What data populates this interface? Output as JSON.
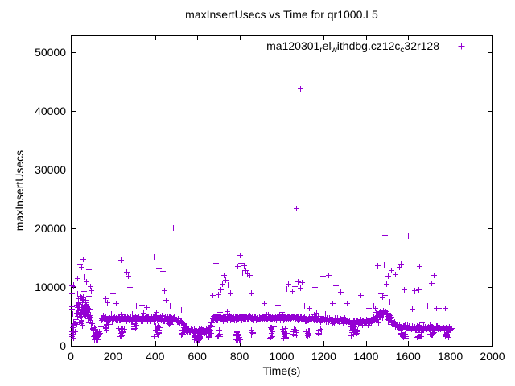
{
  "window": {
    "title": "maxInsertUsecs vs Time for qr1000.L5"
  },
  "chart_data": {
    "type": "scatter",
    "title": "maxInsertUsecs vs Time for qr1000.L5",
    "xlabel": "Time(s)",
    "ylabel": "maxInsertUsecs",
    "xlim": [
      0,
      2000
    ],
    "ylim": [
      0,
      52900
    ],
    "xticks": [
      0,
      200,
      400,
      600,
      800,
      1000,
      1200,
      1400,
      1600,
      1800,
      2000
    ],
    "yticks": [
      0,
      10000,
      20000,
      30000,
      40000,
      50000
    ],
    "grid": false,
    "legend_position": "top-right-inside",
    "marker": "plus",
    "marker_color": "#9400d3",
    "axis_color": "#000000",
    "series_name": "ma120301_rel_withdbg.cz12c_c32r128",
    "legend_display_segments": [
      {
        "t": "ma120301"
      },
      {
        "t": "r",
        "sub": true
      },
      {
        "t": "el"
      },
      {
        "t": "w",
        "sub": true
      },
      {
        "t": "ithdbg.cz12c"
      },
      {
        "t": "c",
        "sub": true
      },
      {
        "t": "32r128"
      }
    ],
    "seed": 42,
    "sample_x0": 2,
    "sample_x1": 1804,
    "sample_step": 2,
    "band_profile": [
      [
        0,
        2200,
        1600
      ],
      [
        20,
        4200,
        2200
      ],
      [
        40,
        6200,
        2400
      ],
      [
        60,
        7300,
        2300
      ],
      [
        78,
        6300,
        2200
      ],
      [
        95,
        3900,
        1500
      ],
      [
        108,
        2400,
        900
      ],
      [
        135,
        2100,
        800
      ],
      [
        148,
        4500,
        700
      ],
      [
        165,
        4600,
        650
      ],
      [
        460,
        4650,
        600
      ],
      [
        510,
        4400,
        650
      ],
      [
        540,
        3000,
        600
      ],
      [
        560,
        2700,
        550
      ],
      [
        605,
        2450,
        550
      ],
      [
        650,
        2700,
        550
      ],
      [
        663,
        3500,
        800
      ],
      [
        672,
        4800,
        600
      ],
      [
        1040,
        4800,
        550
      ],
      [
        1135,
        4650,
        550
      ],
      [
        1300,
        4300,
        650
      ],
      [
        1330,
        3900,
        750
      ],
      [
        1420,
        4200,
        800
      ],
      [
        1455,
        4900,
        1100
      ],
      [
        1475,
        5700,
        1600
      ],
      [
        1502,
        5600,
        1700
      ],
      [
        1522,
        4000,
        1100
      ],
      [
        1545,
        3300,
        500
      ],
      [
        1650,
        3100,
        480
      ],
      [
        1745,
        3000,
        450
      ],
      [
        1805,
        2850,
        450
      ]
    ],
    "dip_columns": [
      [
        7,
        6,
        600,
        10400,
        15
      ],
      [
        55,
        30,
        3000,
        9500,
        40
      ],
      [
        120,
        15,
        1000,
        2600,
        12
      ],
      [
        172,
        10,
        2700,
        3700,
        10
      ],
      [
        240,
        14,
        1500,
        3200,
        16
      ],
      [
        302,
        8,
        2900,
        3900,
        8
      ],
      [
        410,
        16,
        1500,
        3500,
        14
      ],
      [
        470,
        10,
        3500,
        4500,
        6
      ],
      [
        532,
        10,
        1800,
        2800,
        8
      ],
      [
        600,
        18,
        900,
        2000,
        14
      ],
      [
        655,
        8,
        1500,
        2500,
        6
      ],
      [
        700,
        6,
        1300,
        2700,
        8
      ],
      [
        790,
        12,
        700,
        2600,
        14
      ],
      [
        860,
        7,
        1800,
        2900,
        7
      ],
      [
        952,
        12,
        1400,
        3300,
        12
      ],
      [
        1015,
        12,
        1300,
        3000,
        12
      ],
      [
        1060,
        8,
        1700,
        3000,
        8
      ],
      [
        1122,
        8,
        1500,
        2600,
        8
      ],
      [
        1180,
        7,
        2000,
        3000,
        6
      ],
      [
        1345,
        22,
        1800,
        2900,
        14
      ],
      [
        1578,
        15,
        1300,
        2300,
        12
      ],
      [
        1652,
        10,
        1500,
        2300,
        8
      ],
      [
        1712,
        10,
        1600,
        2400,
        8
      ],
      [
        1782,
        12,
        1400,
        2500,
        10
      ]
    ],
    "points_outliers": [
      [
        1086,
        43900
      ],
      [
        1069,
        23500
      ],
      [
        485,
        20100
      ],
      [
        1489,
        18900
      ],
      [
        1599,
        18800
      ],
      [
        1489,
        17400
      ],
      [
        57,
        14800
      ],
      [
        42,
        14000
      ],
      [
        50,
        13400
      ],
      [
        84,
        13000
      ],
      [
        30,
        11500
      ],
      [
        65,
        11800
      ],
      [
        72,
        10900
      ],
      [
        90,
        10200
      ],
      [
        96,
        9500
      ],
      [
        237,
        14700
      ],
      [
        262,
        12600
      ],
      [
        270,
        11900
      ],
      [
        277,
        10000
      ],
      [
        165,
        8100
      ],
      [
        172,
        7400
      ],
      [
        197,
        9000
      ],
      [
        212,
        7200
      ],
      [
        310,
        6800
      ],
      [
        335,
        7000
      ],
      [
        360,
        6600
      ],
      [
        393,
        15200
      ],
      [
        416,
        13300
      ],
      [
        434,
        12700
      ],
      [
        442,
        9500
      ],
      [
        452,
        7800
      ],
      [
        470,
        6800
      ],
      [
        522,
        6200
      ],
      [
        670,
        8700
      ],
      [
        687,
        14100
      ],
      [
        700,
        8800
      ],
      [
        710,
        9600
      ],
      [
        718,
        10500
      ],
      [
        725,
        12000
      ],
      [
        733,
        11200
      ],
      [
        745,
        10400
      ],
      [
        756,
        9100
      ],
      [
        790,
        13500
      ],
      [
        800,
        15500
      ],
      [
        806,
        14100
      ],
      [
        812,
        12500
      ],
      [
        820,
        13700
      ],
      [
        828,
        12900
      ],
      [
        836,
        12300
      ],
      [
        848,
        12100
      ],
      [
        855,
        9000
      ],
      [
        905,
        6900
      ],
      [
        915,
        7300
      ],
      [
        980,
        7000
      ],
      [
        1022,
        9700
      ],
      [
        1032,
        10500
      ],
      [
        1050,
        9300
      ],
      [
        1062,
        10200
      ],
      [
        1075,
        11000
      ],
      [
        1088,
        9800
      ],
      [
        1097,
        10800
      ],
      [
        1105,
        6900
      ],
      [
        1130,
        6500
      ],
      [
        1155,
        10000
      ],
      [
        1195,
        11900
      ],
      [
        1221,
        12000
      ],
      [
        1240,
        7200
      ],
      [
        1256,
        10300
      ],
      [
        1280,
        9200
      ],
      [
        1310,
        7300
      ],
      [
        1350,
        8900
      ],
      [
        1375,
        8600
      ],
      [
        1412,
        6500
      ],
      [
        1435,
        6900
      ],
      [
        1454,
        13700
      ],
      [
        1470,
        9000
      ],
      [
        1478,
        8400
      ],
      [
        1485,
        13800
      ],
      [
        1496,
        10500
      ],
      [
        1504,
        11900
      ],
      [
        1508,
        8200
      ],
      [
        1519,
        12900
      ],
      [
        1538,
        12200
      ],
      [
        1557,
        13400
      ],
      [
        1565,
        14000
      ],
      [
        1580,
        9600
      ],
      [
        1618,
        6300
      ],
      [
        1630,
        9500
      ],
      [
        1649,
        9600
      ],
      [
        1653,
        13600
      ],
      [
        1690,
        6900
      ],
      [
        1710,
        10700
      ],
      [
        1721,
        12050
      ],
      [
        1733,
        6400
      ],
      [
        1744,
        6400
      ],
      [
        1775,
        6400
      ]
    ]
  }
}
